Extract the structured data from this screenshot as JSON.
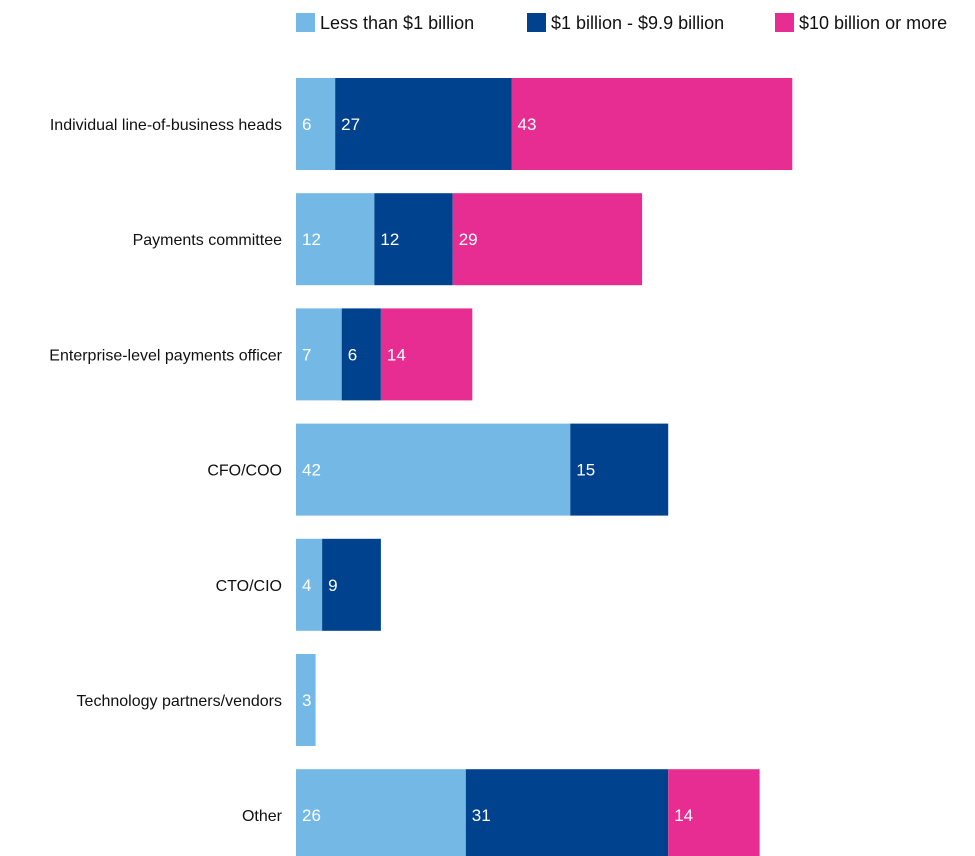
{
  "chart_data": {
    "type": "bar",
    "orientation": "horizontal",
    "stacked": true,
    "title": "",
    "xlabel": "",
    "ylabel": "",
    "grid": false,
    "legend_position": "top",
    "categories": [
      "Individual line-of-business heads",
      "Payments committee",
      "Enterprise-level payments officer",
      "CFO/COO",
      "CTO/CIO",
      "Technology partners/vendors",
      "Other"
    ],
    "series": [
      {
        "name": "Less than $1 billion",
        "color": "#74b8e6",
        "values": [
          6,
          12,
          7,
          42,
          4,
          3,
          26
        ]
      },
      {
        "name": "$1 billion - $9.9 billion",
        "color": "#00428e",
        "values": [
          27,
          12,
          6,
          15,
          9,
          null,
          31
        ]
      },
      {
        "name": "$10 billion or more",
        "color": "#e72d92",
        "values": [
          43,
          29,
          14,
          null,
          null,
          null,
          14
        ]
      }
    ]
  }
}
